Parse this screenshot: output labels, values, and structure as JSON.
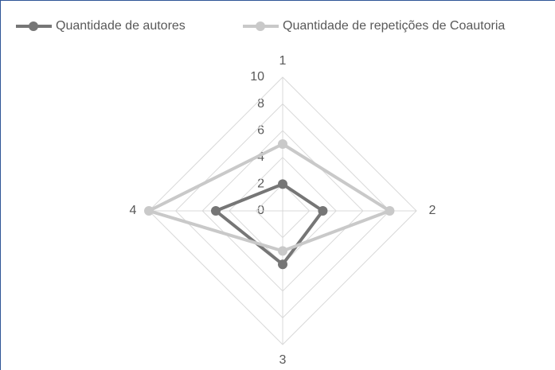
{
  "chart_data": {
    "type": "radar",
    "categories": [
      "1",
      "2",
      "3",
      "4"
    ],
    "series": [
      {
        "name": "Quantidade de autores",
        "color": "#767676",
        "values": [
          2,
          3,
          4,
          5
        ]
      },
      {
        "name": "Quantidade de repetições de Coautoria",
        "color": "#c9c9c9",
        "values": [
          5,
          8,
          3,
          10
        ]
      }
    ],
    "ylim": [
      0,
      10
    ],
    "yticks": [
      0,
      2,
      4,
      6,
      8,
      10
    ],
    "grid": true,
    "legend": "top"
  }
}
